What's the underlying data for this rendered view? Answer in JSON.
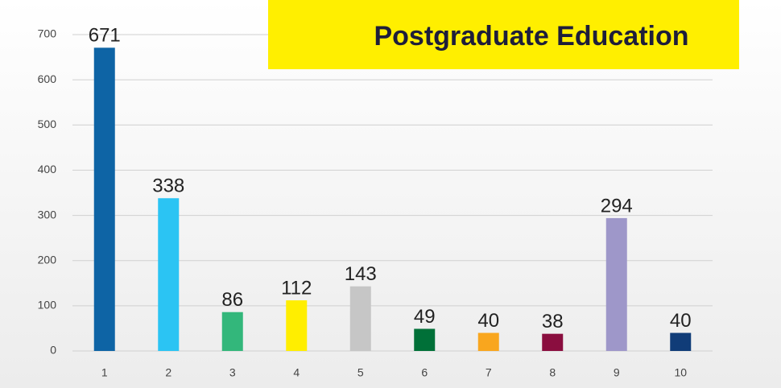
{
  "chart_data": {
    "type": "bar",
    "title": "Postgraduate Education",
    "categories": [
      "1",
      "2",
      "3",
      "4",
      "5",
      "6",
      "7",
      "8",
      "9",
      "10"
    ],
    "values": [
      671,
      338,
      86,
      112,
      143,
      49,
      40,
      38,
      294,
      40
    ],
    "colors": [
      "#0e64a5",
      "#2bc4f3",
      "#33b77b",
      "#ffee00",
      "#c6c6c6",
      "#007038",
      "#f9a61e",
      "#8a0e3f",
      "#9e97c9",
      "#103c78"
    ],
    "ylim": [
      0,
      700
    ],
    "yticks": [
      0,
      100,
      200,
      300,
      400,
      500,
      600,
      700
    ],
    "grid": true
  }
}
